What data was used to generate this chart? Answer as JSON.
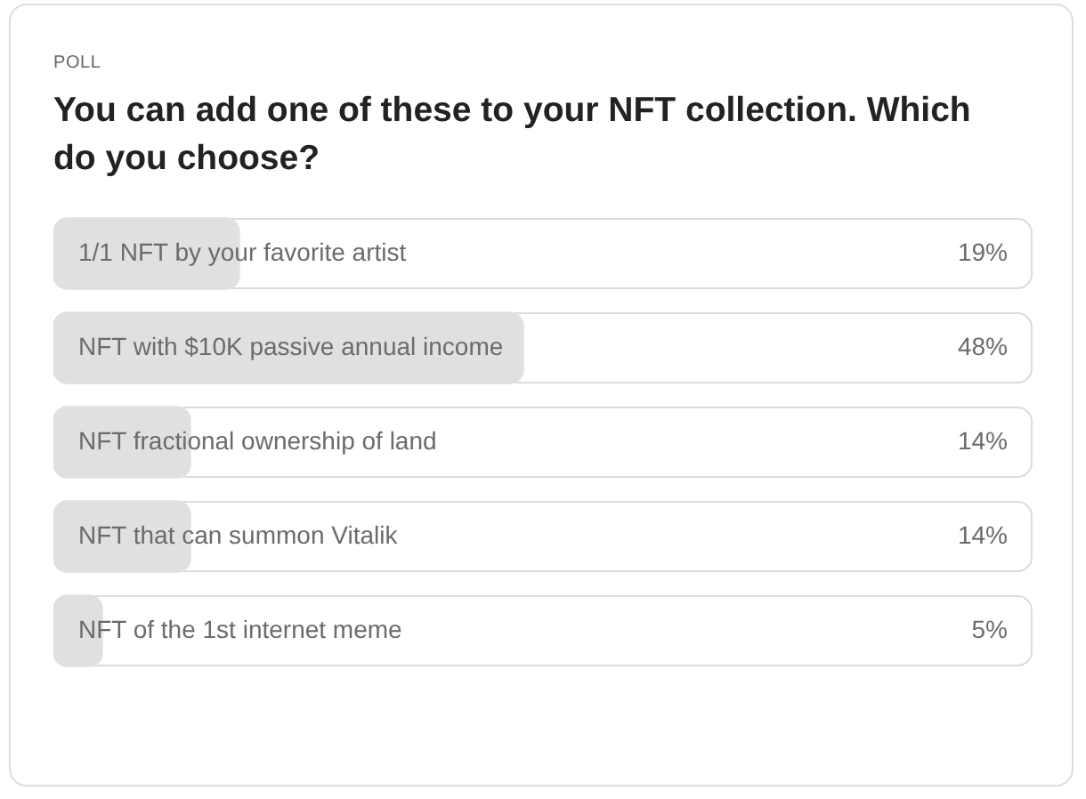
{
  "chart_data": {
    "type": "bar",
    "orientation": "horizontal",
    "subtitle": "POLL",
    "title": "You can add one of these to your NFT collection. Which do you choose?",
    "categories": [
      "1/1 NFT by your favorite artist",
      "NFT with $10K passive annual income",
      "NFT fractional ownership of land",
      "NFT that can summon Vitalik",
      "NFT of the 1st internet meme"
    ],
    "values": [
      19,
      48,
      14,
      14,
      5
    ],
    "value_labels": [
      "19%",
      "48%",
      "14%",
      "14%",
      "5%"
    ],
    "color": "#e0e0e0",
    "xlim": [
      0,
      100
    ],
    "legend": false
  }
}
